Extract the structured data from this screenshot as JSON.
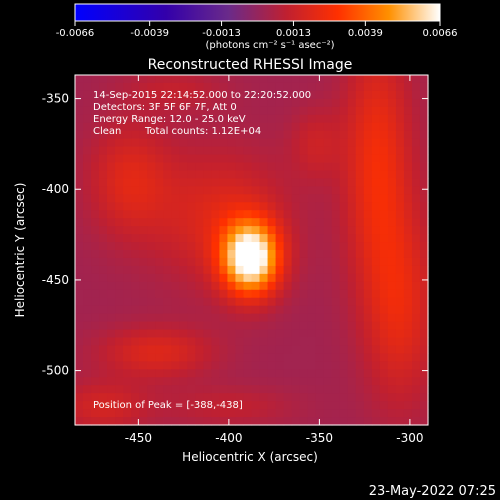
{
  "chart_data": {
    "type": "heatmap",
    "title": "Reconstructed RHESSI Image",
    "xlabel": "Heliocentric X (arcsec)",
    "ylabel": "Heliocentric Y (arcsec)",
    "xlim": [
      -485,
      -290
    ],
    "ylim": [
      -530,
      -337
    ],
    "x_ticks": [
      "-450",
      "-400",
      "-350",
      "-300"
    ],
    "y_ticks": [
      "-350",
      "-400",
      "-450",
      "-500"
    ],
    "x_tick_values": [
      -450,
      -400,
      -350,
      -300
    ],
    "y_tick_values": [
      -350,
      -400,
      -450,
      -500
    ],
    "colorbar": {
      "ticks": [
        "-0.0066",
        "-0.0039",
        "-0.0013",
        "0.0013",
        "0.0039",
        "0.0066"
      ],
      "tick_values": [
        -0.0066,
        -0.0039,
        -0.0013,
        0.0013,
        0.0039,
        0.0066
      ],
      "range": [
        -0.0066,
        0.0066
      ],
      "label": "(photons cm⁻² s⁻¹ asec⁻²)",
      "colors": [
        "#0000ff",
        "#3300aa",
        "#6a2a8a",
        "#c02030",
        "#ff3000",
        "#ff9000",
        "#ffffff"
      ]
    },
    "annotations": [
      "14-Sep-2015 22:14:52.000 to 22:20:52.000",
      "Detectors: 3F 5F 6F 7F, Att 0",
      "Energy Range: 12.0 - 25.0 keV",
      "Clean",
      "Total counts: 1.12E+04"
    ],
    "peak_label": "Position of Peak = [-388,-438]",
    "peak": {
      "x": -388,
      "y": -438,
      "value": 0.0066
    },
    "features": [
      {
        "x": -388,
        "y": -438,
        "sx": 11,
        "sy": 14,
        "amp": 0.0068
      },
      {
        "x": -405,
        "y": -415,
        "sx": 26,
        "sy": 26,
        "amp": 0.0016
      },
      {
        "x": -318,
        "y": -385,
        "sx": 13,
        "sy": 48,
        "amp": 0.0022
      },
      {
        "x": -305,
        "y": -465,
        "sx": 14,
        "sy": 38,
        "amp": 0.0018
      },
      {
        "x": -455,
        "y": -395,
        "sx": 16,
        "sy": 22,
        "amp": 0.0016
      },
      {
        "x": -440,
        "y": -490,
        "sx": 22,
        "sy": 10,
        "amp": 0.0016
      },
      {
        "x": -352,
        "y": -375,
        "sx": 10,
        "sy": 14,
        "amp": 0.001
      },
      {
        "x": -470,
        "y": -520,
        "sx": 18,
        "sy": 10,
        "amp": 0.0013
      },
      {
        "x": -400,
        "y": -520,
        "sx": 26,
        "sy": 8,
        "amp": 0.0008
      },
      {
        "x": -430,
        "y": -345,
        "sx": 20,
        "sy": 8,
        "amp": 0.0008
      }
    ],
    "background_level": 0.0003
  },
  "timestamp": "23-May-2022 07:25"
}
